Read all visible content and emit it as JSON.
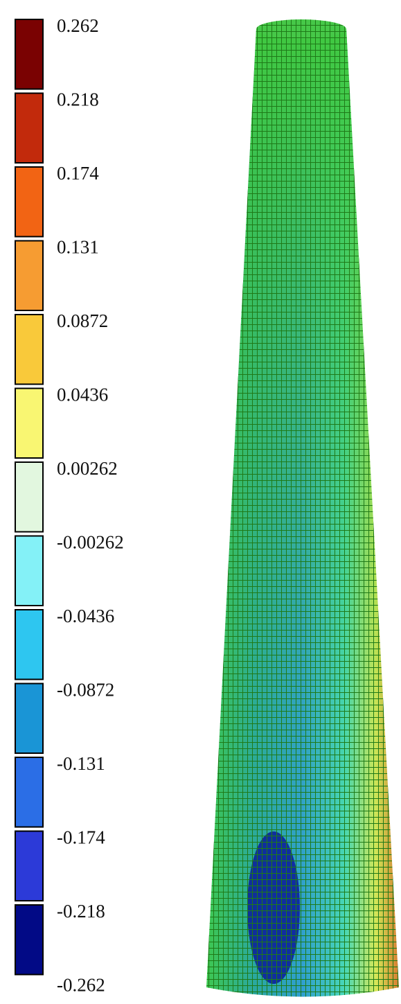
{
  "chart_data": {
    "type": "colorbar",
    "levels": [
      0.262,
      0.218,
      0.174,
      0.131,
      0.0872,
      0.0436,
      0.00262,
      -0.00262,
      -0.0436,
      -0.0872,
      -0.131,
      -0.174,
      -0.218,
      -0.262
    ],
    "colors": [
      "#7a0202",
      "#c22a0c",
      "#f26414",
      "#f69c32",
      "#f9c93a",
      "#f9f672",
      "#e2f7df",
      "#84f1f7",
      "#2ec6f0",
      "#1a95d6",
      "#2b6ee6",
      "#2c3ad8",
      "#020a86"
    ]
  }
}
